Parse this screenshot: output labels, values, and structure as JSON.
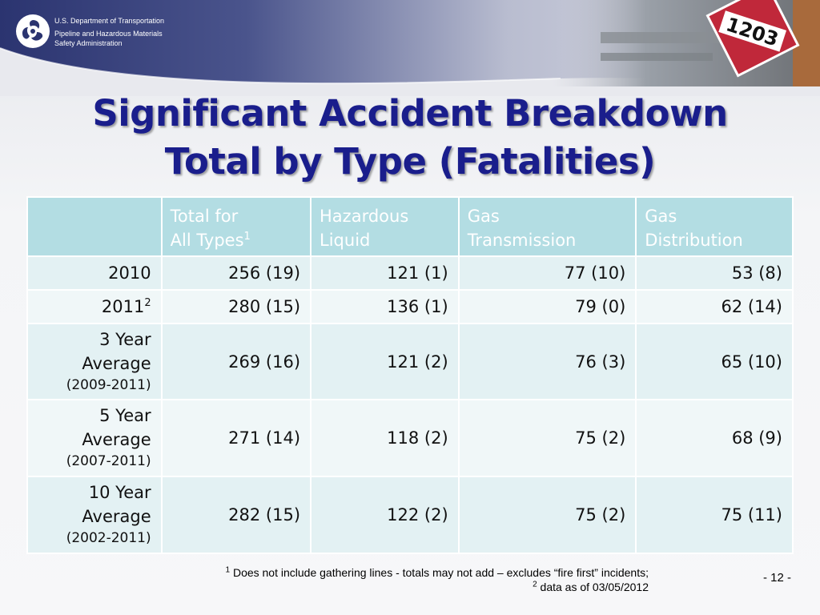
{
  "header": {
    "agency_line1": "U.S. Department of Transportation",
    "agency_line2": "Pipeline and Hazardous Materials",
    "agency_line3": "Safety Administration",
    "logo_icon": "dot-triskelion-logo",
    "placard_number": "1203"
  },
  "title": {
    "line1": "Significant Accident Breakdown",
    "line2": "Total by Type (Fatalities)"
  },
  "table": {
    "headers": [
      {
        "line1": "",
        "line2": "",
        "sup": ""
      },
      {
        "line1": "Total for",
        "line2": "All Types",
        "sup": "1"
      },
      {
        "line1": "Hazardous",
        "line2": "Liquid",
        "sup": ""
      },
      {
        "line1": "Gas",
        "line2": "Transmission",
        "sup": ""
      },
      {
        "line1": "Gas",
        "line2": "Distribution",
        "sup": ""
      }
    ],
    "rows": [
      {
        "label": "2010",
        "sup": "",
        "label2": "",
        "sub": "",
        "total": "256 (19)",
        "hazardous_liquid": "121 (1)",
        "gas_transmission": "77 (10)",
        "gas_distribution": "53 (8)"
      },
      {
        "label": "2011",
        "sup": "2",
        "label2": "",
        "sub": "",
        "total": "280 (15)",
        "hazardous_liquid": "136 (1)",
        "gas_transmission": "79 (0)",
        "gas_distribution": "62 (14)"
      },
      {
        "label": "3 Year",
        "sup": "",
        "label2": "Average",
        "sub": "(2009-2011)",
        "total": "269 (16)",
        "hazardous_liquid": "121 (2)",
        "gas_transmission": "76 (3)",
        "gas_distribution": "65 (10)"
      },
      {
        "label": "5 Year",
        "sup": "",
        "label2": "Average",
        "sub": "(2007-2011)",
        "total": "271 (14)",
        "hazardous_liquid": "118 (2)",
        "gas_transmission": "75 (2)",
        "gas_distribution": "68 (9)"
      },
      {
        "label": "10 Year",
        "sup": "",
        "label2": "Average",
        "sub": "(2002-2011)",
        "total": "282 (15)",
        "hazardous_liquid": "122 (2)",
        "gas_transmission": "75 (2)",
        "gas_distribution": "75 (11)"
      }
    ]
  },
  "footnotes": {
    "note1_mark": "1",
    "note1_text": "Does not include gathering lines - totals may not add – excludes “fire first” incidents;",
    "note2_mark": "2",
    "note2_text": "data as of 03/05/2012"
  },
  "page_number": "- 12 -",
  "colors": {
    "title": "#1a1e8c",
    "header_cell": "#b3dde3",
    "row_a": "#e3f1f3",
    "row_b": "#f0f7f8",
    "header_band": "#2b3470"
  }
}
